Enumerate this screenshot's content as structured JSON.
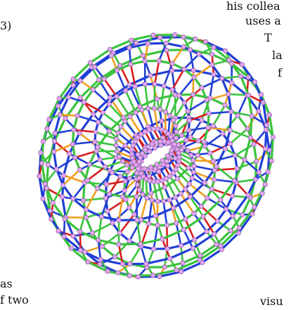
{
  "text_fragments": {
    "top_right_1": "his collea",
    "top_right_2": "uses a",
    "top_right_3": "T",
    "top_right_4": "la",
    "top_right_5": "f",
    "left_paren": "3)",
    "bottom_left_1": "as",
    "bottom_left_2": "f two",
    "bottom_right_1": "visu"
  },
  "figure": {
    "subject": "molecular lattice torus model",
    "colors": {
      "blue": "#1f3fd6",
      "green": "#39c43c",
      "red": "#d81e1e",
      "orange": "#f0a020",
      "atom": "#e0a8ee",
      "atom_edge": "#9a5ab0",
      "black": "#111111"
    }
  }
}
